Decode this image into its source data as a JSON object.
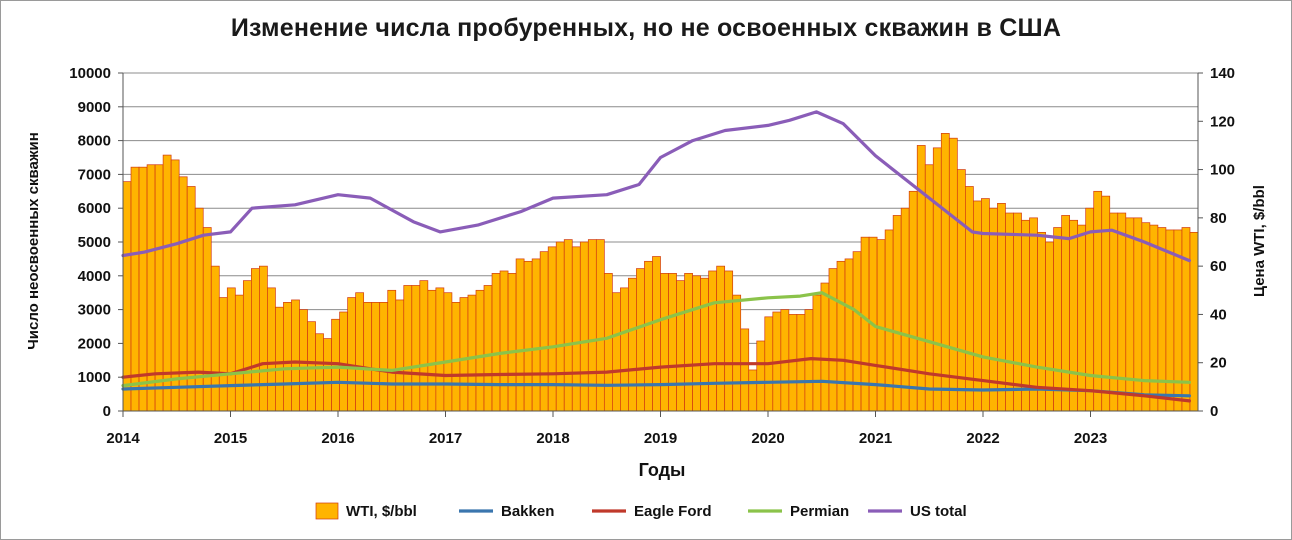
{
  "chart_data": {
    "type": "bar+line",
    "title": "Изменение числа пробуренных, но не освоенных скважин в США",
    "xlabel": "Годы",
    "ylabel_left": "Число неосвоенных скважин",
    "ylabel_right": "Цена WTI, $/bbl",
    "ylim_left": [
      0,
      10000
    ],
    "ylim_right": [
      0,
      140
    ],
    "yticks_left": [
      "0",
      "1000",
      "2000",
      "3000",
      "4000",
      "5000",
      "6000",
      "7000",
      "8000",
      "9000",
      "10000"
    ],
    "yticks_right": [
      "0",
      "20",
      "40",
      "60",
      "80",
      "100",
      "120",
      "140"
    ],
    "x_range": [
      2014.0,
      2024.0
    ],
    "x_tick_labels": [
      "2014",
      "2015",
      "2016",
      "2017",
      "2018",
      "2019",
      "2020",
      "2021",
      "2022",
      "2023"
    ],
    "grid": "horizontal",
    "legend_position": "bottom",
    "bar_series": {
      "name": "WTI, $/bbl",
      "color": "#FFB400",
      "axis": "right",
      "start": 2014.0,
      "step_months": 1,
      "values": [
        95,
        101,
        101,
        102,
        102,
        106,
        104,
        97,
        93,
        84,
        76,
        60,
        47,
        51,
        48,
        54,
        59,
        60,
        51,
        43,
        45,
        46,
        42,
        37,
        32,
        30,
        38,
        41,
        47,
        49,
        45,
        45,
        45,
        50,
        46,
        52,
        52,
        54,
        50,
        51,
        49,
        45,
        47,
        48,
        50,
        52,
        57,
        58,
        57,
        63,
        62,
        63,
        66,
        68,
        70,
        71,
        68,
        70,
        71,
        71,
        57,
        49,
        51,
        55,
        59,
        62,
        64,
        57,
        57,
        54,
        57,
        56,
        55,
        58,
        60,
        58,
        48,
        34,
        17,
        29,
        39,
        41,
        42,
        40,
        40,
        42,
        48,
        53,
        59,
        62,
        63,
        66,
        72,
        72,
        71,
        75,
        81,
        84,
        91,
        110,
        102,
        109,
        115,
        113,
        100,
        93,
        87,
        88,
        84,
        86,
        82,
        82,
        79,
        80,
        74,
        70,
        76,
        81,
        79,
        77,
        84,
        91,
        89,
        82,
        82,
        80,
        80,
        78,
        77,
        76,
        75,
        75,
        76,
        74
      ]
    },
    "line_series": [
      {
        "name": "Bakken",
        "color": "#3A76AE",
        "axis": "left",
        "points": [
          [
            2014.0,
            650
          ],
          [
            2014.5,
            700
          ],
          [
            2015.0,
            750
          ],
          [
            2015.5,
            800
          ],
          [
            2016.0,
            850
          ],
          [
            2016.5,
            800
          ],
          [
            2017.0,
            800
          ],
          [
            2017.5,
            780
          ],
          [
            2018.0,
            780
          ],
          [
            2018.5,
            760
          ],
          [
            2019.0,
            780
          ],
          [
            2019.5,
            820
          ],
          [
            2020.0,
            850
          ],
          [
            2020.5,
            880
          ],
          [
            2021.0,
            780
          ],
          [
            2021.5,
            650
          ],
          [
            2022.0,
            620
          ],
          [
            2022.5,
            650
          ],
          [
            2023.0,
            600
          ],
          [
            2023.5,
            480
          ],
          [
            2023.92,
            450
          ]
        ]
      },
      {
        "name": "Eagle Ford",
        "color": "#C0392B",
        "axis": "left",
        "points": [
          [
            2014.0,
            1000
          ],
          [
            2014.3,
            1100
          ],
          [
            2014.7,
            1150
          ],
          [
            2015.0,
            1100
          ],
          [
            2015.3,
            1400
          ],
          [
            2015.6,
            1450
          ],
          [
            2016.0,
            1400
          ],
          [
            2016.5,
            1150
          ],
          [
            2017.0,
            1050
          ],
          [
            2017.5,
            1080
          ],
          [
            2018.0,
            1100
          ],
          [
            2018.5,
            1150
          ],
          [
            2019.0,
            1300
          ],
          [
            2019.5,
            1400
          ],
          [
            2020.0,
            1400
          ],
          [
            2020.4,
            1550
          ],
          [
            2020.7,
            1500
          ],
          [
            2021.0,
            1350
          ],
          [
            2021.5,
            1100
          ],
          [
            2022.0,
            900
          ],
          [
            2022.5,
            700
          ],
          [
            2023.0,
            600
          ],
          [
            2023.5,
            450
          ],
          [
            2023.92,
            300
          ]
        ]
      },
      {
        "name": "Permian",
        "color": "#8BC34A",
        "axis": "left",
        "points": [
          [
            2014.0,
            750
          ],
          [
            2014.5,
            950
          ],
          [
            2015.0,
            1100
          ],
          [
            2015.5,
            1250
          ],
          [
            2016.0,
            1300
          ],
          [
            2016.5,
            1200
          ],
          [
            2017.0,
            1450
          ],
          [
            2017.5,
            1700
          ],
          [
            2018.0,
            1900
          ],
          [
            2018.5,
            2150
          ],
          [
            2019.0,
            2700
          ],
          [
            2019.5,
            3200
          ],
          [
            2020.0,
            3350
          ],
          [
            2020.3,
            3400
          ],
          [
            2020.5,
            3500
          ],
          [
            2020.8,
            3000
          ],
          [
            2021.0,
            2500
          ],
          [
            2021.5,
            2050
          ],
          [
            2022.0,
            1600
          ],
          [
            2022.5,
            1300
          ],
          [
            2023.0,
            1050
          ],
          [
            2023.5,
            900
          ],
          [
            2023.92,
            850
          ]
        ]
      },
      {
        "name": "US total",
        "color": "#8A5DB8",
        "axis": "left",
        "points": [
          [
            2014.0,
            4600
          ],
          [
            2014.2,
            4700
          ],
          [
            2014.5,
            4950
          ],
          [
            2014.75,
            5200
          ],
          [
            2015.0,
            5300
          ],
          [
            2015.2,
            6000
          ],
          [
            2015.6,
            6100
          ],
          [
            2016.0,
            6400
          ],
          [
            2016.3,
            6300
          ],
          [
            2016.7,
            5600
          ],
          [
            2016.95,
            5300
          ],
          [
            2017.3,
            5500
          ],
          [
            2017.7,
            5900
          ],
          [
            2018.0,
            6300
          ],
          [
            2018.5,
            6400
          ],
          [
            2018.8,
            6700
          ],
          [
            2019.0,
            7500
          ],
          [
            2019.3,
            8000
          ],
          [
            2019.6,
            8300
          ],
          [
            2020.0,
            8450
          ],
          [
            2020.2,
            8600
          ],
          [
            2020.45,
            8850
          ],
          [
            2020.7,
            8500
          ],
          [
            2021.0,
            7550
          ],
          [
            2021.5,
            6300
          ],
          [
            2021.9,
            5300
          ],
          [
            2022.0,
            5250
          ],
          [
            2022.5,
            5200
          ],
          [
            2022.8,
            5100
          ],
          [
            2023.0,
            5300
          ],
          [
            2023.2,
            5350
          ],
          [
            2023.5,
            5000
          ],
          [
            2023.92,
            4450
          ]
        ]
      }
    ]
  }
}
